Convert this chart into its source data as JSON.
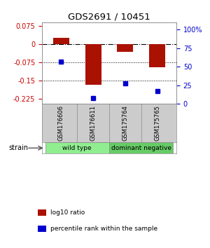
{
  "title": "GDS2691 / 10451",
  "samples": [
    "GSM176606",
    "GSM176611",
    "GSM175764",
    "GSM175765"
  ],
  "log10_ratio": [
    0.025,
    -0.165,
    -0.03,
    -0.095
  ],
  "percentile_rank": [
    57,
    8,
    28,
    17
  ],
  "groups": [
    {
      "name": "wild type",
      "samples": [
        0,
        1
      ],
      "color": "#90ee90"
    },
    {
      "name": "dominant negative",
      "samples": [
        2,
        3
      ],
      "color": "#66cc66"
    }
  ],
  "strain_label": "strain",
  "left_axis_color": "#cc0000",
  "right_axis_color": "#0000cc",
  "bar_color": "#aa1100",
  "dot_color": "#0000cc",
  "ylim_left": [
    -0.245,
    0.09
  ],
  "ylim_right": [
    0,
    110
  ],
  "yticks_left": [
    0.075,
    0,
    -0.075,
    -0.15,
    -0.225
  ],
  "yticks_right": [
    100,
    75,
    50,
    25,
    0
  ],
  "ytick_labels_left": [
    "0.075",
    "0",
    "-0.075",
    "-0.15",
    "-0.225"
  ],
  "ytick_labels_right": [
    "100%",
    "75",
    "50",
    "25",
    "0"
  ],
  "hline_dotted_vals": [
    -0.075,
    -0.15
  ],
  "background_color": "#ffffff",
  "sample_bg_color": "#cccccc",
  "legend_items": [
    {
      "label": "log10 ratio",
      "color": "#aa1100"
    },
    {
      "label": "percentile rank within the sample",
      "color": "#0000cc"
    }
  ]
}
